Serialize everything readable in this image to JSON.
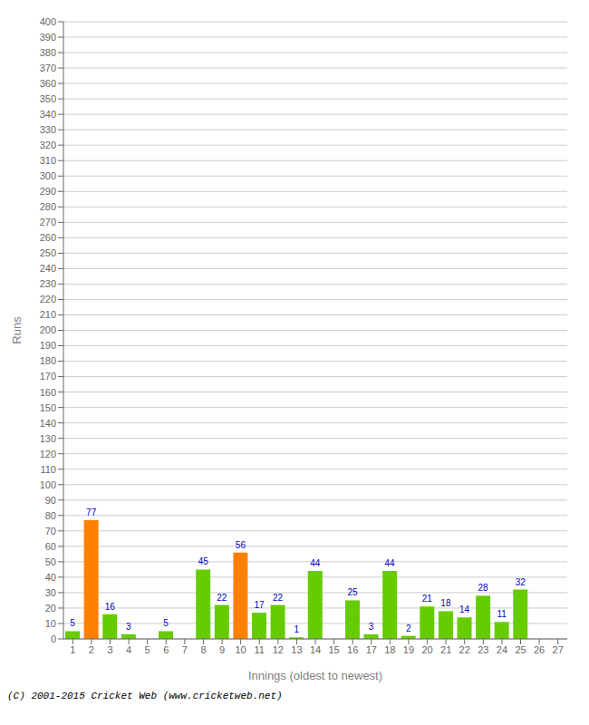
{
  "chart_data": {
    "type": "bar",
    "xlabel": "Innings (oldest to newest)",
    "ylabel": "Runs",
    "categories": [
      1,
      2,
      3,
      4,
      5,
      6,
      7,
      8,
      9,
      10,
      11,
      12,
      13,
      14,
      15,
      16,
      17,
      18,
      19,
      20,
      21,
      22,
      23,
      24,
      25,
      26,
      27
    ],
    "values": [
      5,
      77,
      16,
      3,
      0,
      5,
      0,
      45,
      22,
      56,
      17,
      22,
      1,
      44,
      0,
      25,
      3,
      44,
      2,
      21,
      18,
      14,
      28,
      11,
      32,
      0,
      0
    ],
    "colors": [
      "#66cc00",
      "#ff8000",
      "#66cc00",
      "#66cc00",
      "#66cc00",
      "#66cc00",
      "#66cc00",
      "#66cc00",
      "#66cc00",
      "#ff8000",
      "#66cc00",
      "#66cc00",
      "#66cc00",
      "#66cc00",
      "#66cc00",
      "#66cc00",
      "#66cc00",
      "#66cc00",
      "#66cc00",
      "#66cc00",
      "#66cc00",
      "#66cc00",
      "#66cc00",
      "#66cc00",
      "#66cc00",
      "#66cc00",
      "#66cc00"
    ],
    "data_labels": true,
    "ylim": [
      0,
      400
    ],
    "yticks": [
      0,
      10,
      20,
      30,
      40,
      50,
      60,
      70,
      80,
      90,
      100,
      110,
      120,
      130,
      140,
      150,
      160,
      170,
      180,
      190,
      200,
      210,
      220,
      230,
      240,
      250,
      260,
      270,
      280,
      290,
      300,
      310,
      320,
      330,
      340,
      350,
      360,
      370,
      380,
      390,
      400
    ],
    "grid": true,
    "footer": "(C) 2001-2015 Cricket Web (www.cricketweb.net)"
  }
}
